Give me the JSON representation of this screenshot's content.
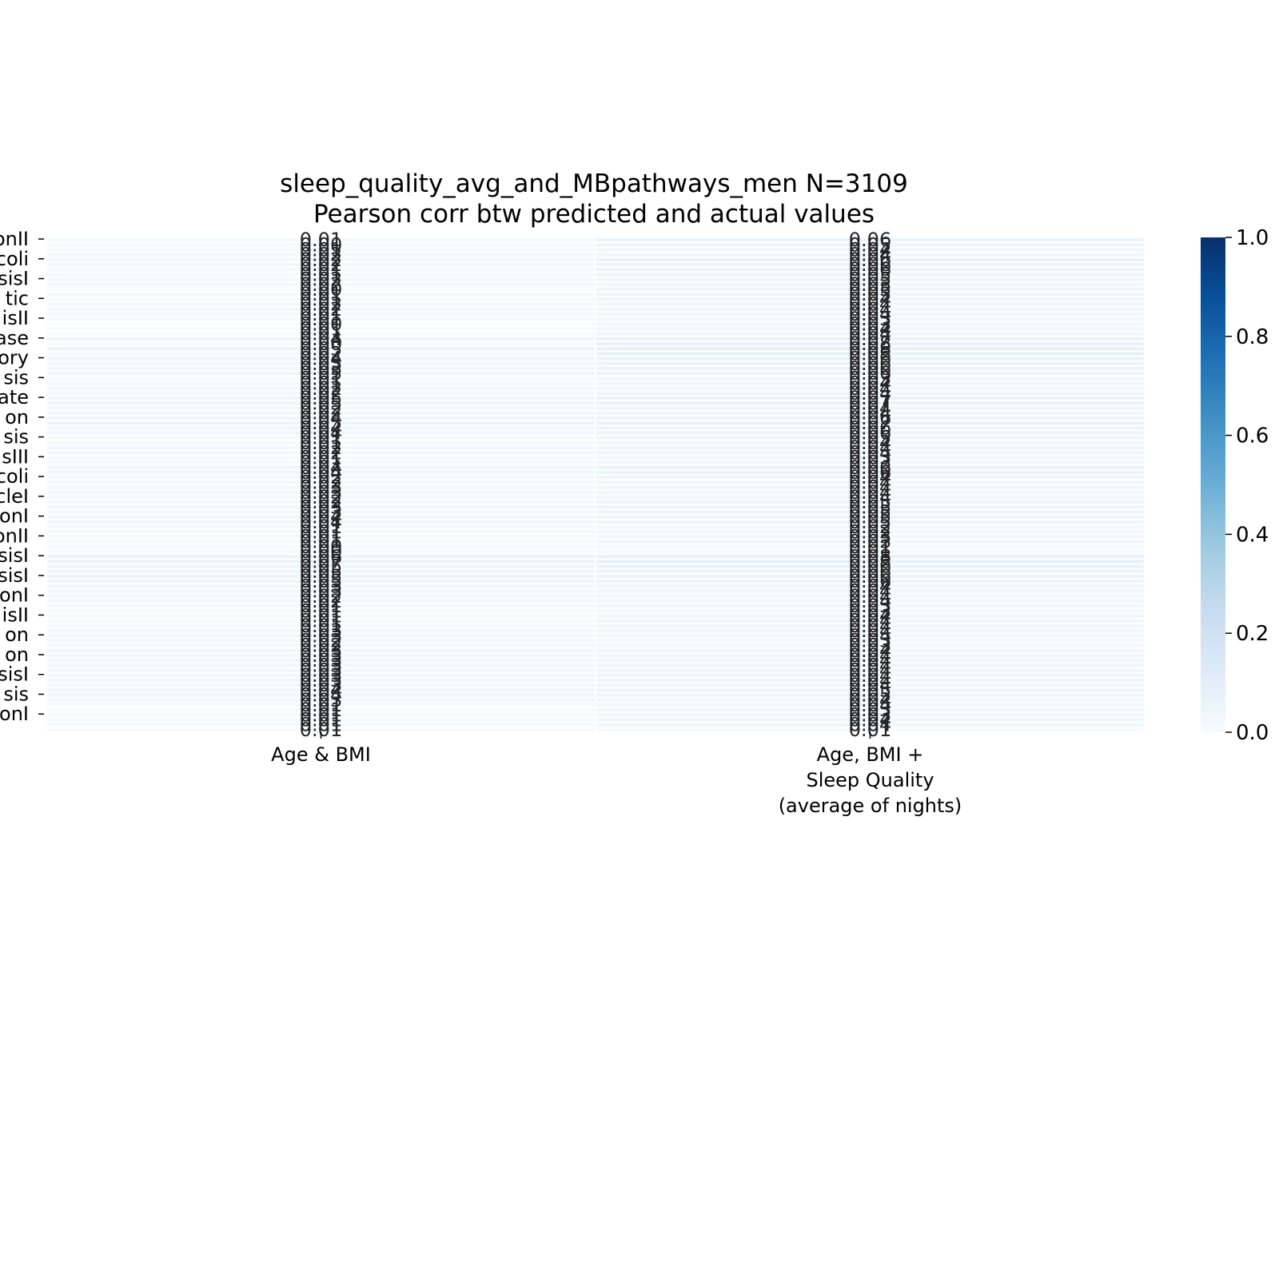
{
  "chart_data": {
    "type": "heatmap",
    "title": "sleep_quality_avg_and_MBpathways_men N=3109",
    "subtitle": "Pearson corr btw predicted and actual values",
    "colormap": "Blues",
    "colors": {
      "low": "#f7fbff",
      "high": "#08306b",
      "annotation": "#262626"
    },
    "columns": [
      "Age & BMI",
      "Age, BMI +\nSleep Quality\n(average of nights)"
    ],
    "row_tick_labels": [
      "onII",
      "coli",
      "sisI",
      "tic",
      "isII",
      "ase",
      "ory",
      "sis",
      "ate",
      "on",
      "sis",
      "sIII",
      "coli",
      "cleI",
      "onI",
      "onII",
      "sisI",
      "sisI",
      "onI",
      "isII",
      "on",
      "on",
      "sisI",
      "sis",
      "onI"
    ],
    "values": [
      [
        0.01,
        0.06
      ],
      [
        0.0,
        0.05
      ],
      [
        0.01,
        0.04
      ],
      [
        0.02,
        0.04
      ],
      [
        0.02,
        0.06
      ],
      [
        0.02,
        0.06
      ],
      [
        0.01,
        0.06
      ],
      [
        0.01,
        0.05
      ],
      [
        0.02,
        0.05
      ],
      [
        0.02,
        0.03
      ],
      [
        0.0,
        0.05
      ],
      [
        0.01,
        0.05
      ],
      [
        0.01,
        0.04
      ],
      [
        0.02,
        0.04
      ],
      [
        0.02,
        0.04
      ],
      [
        0.01,
        0.04
      ],
      [
        0.01,
        0.03
      ],
      [
        0.0,
        0.03
      ],
      [
        0.01,
        0.04
      ],
      [
        0.01,
        0.04
      ],
      [
        0.04,
        0.07
      ],
      [
        0.0,
        0.08
      ],
      [
        0.05,
        0.08
      ],
      [
        0.02,
        0.08
      ],
      [
        0.04,
        0.06
      ],
      [
        0.03,
        0.06
      ],
      [
        0.03,
        0.06
      ],
      [
        0.05,
        0.06
      ],
      [
        0.01,
        0.03
      ],
      [
        0.01,
        0.04
      ],
      [
        0.02,
        0.04
      ],
      [
        0.02,
        0.04
      ],
      [
        0.05,
        0.07
      ],
      [
        0.05,
        0.07
      ],
      [
        0.02,
        0.04
      ],
      [
        0.02,
        0.04
      ],
      [
        0.04,
        0.06
      ],
      [
        0.05,
        0.07
      ],
      [
        0.04,
        0.06
      ],
      [
        0.04,
        0.06
      ],
      [
        0.01,
        0.05
      ],
      [
        0.01,
        0.04
      ],
      [
        0.02,
        0.04
      ],
      [
        0.02,
        0.04
      ],
      [
        0.01,
        0.03
      ],
      [
        0.01,
        0.03
      ],
      [
        0.04,
        0.06
      ],
      [
        0.04,
        0.06
      ],
      [
        0.02,
        0.04
      ],
      [
        0.02,
        0.04
      ],
      [
        0.03,
        0.04
      ],
      [
        0.03,
        0.04
      ],
      [
        0.02,
        0.04
      ],
      [
        0.02,
        0.05
      ],
      [
        0.03,
        0.05
      ],
      [
        0.03,
        0.05
      ],
      [
        0.04,
        0.05
      ],
      [
        0.04,
        0.05
      ],
      [
        0.01,
        0.02
      ],
      [
        0.01,
        0.02
      ],
      [
        0.01,
        0.03
      ],
      [
        0.01,
        0.03
      ],
      [
        0.0,
        0.01
      ],
      [
        0.0,
        0.01
      ],
      [
        0.06,
        0.08
      ],
      [
        0.07,
        0.08
      ],
      [
        0.05,
        0.06
      ],
      [
        0.05,
        0.06
      ],
      [
        0.05,
        0.06
      ],
      [
        0.05,
        0.06
      ],
      [
        0.03,
        0.04
      ],
      [
        0.03,
        0.04
      ],
      [
        0.02,
        0.04
      ],
      [
        0.02,
        0.04
      ],
      [
        0.01,
        0.03
      ],
      [
        0.01,
        0.03
      ],
      [
        0.01,
        0.04
      ],
      [
        0.01,
        0.04
      ],
      [
        0.01,
        0.04
      ],
      [
        0.03,
        0.04
      ],
      [
        0.03,
        0.04
      ],
      [
        0.02,
        0.03
      ],
      [
        0.02,
        0.03
      ],
      [
        0.03,
        0.04
      ],
      [
        0.03,
        0.04
      ],
      [
        0.03,
        0.04
      ],
      [
        0.03,
        0.04
      ],
      [
        0.03,
        0.04
      ],
      [
        0.03,
        0.04
      ],
      [
        0.03,
        0.04
      ],
      [
        0.03,
        0.04
      ],
      [
        0.04,
        0.05
      ],
      [
        0.04,
        0.05
      ],
      [
        0.03,
        0.04
      ],
      [
        0.01,
        0.04
      ],
      [
        0.01,
        0.03
      ],
      [
        0.01,
        0.03
      ],
      [
        0.01,
        0.04
      ],
      [
        0.01,
        0.04
      ],
      [
        0.01,
        0.01
      ]
    ],
    "value_format": "0.00",
    "vmin": 0.0,
    "vmax": 1.0,
    "colorbar_ticks": [
      "0.0",
      "0.2",
      "0.4",
      "0.6",
      "0.8",
      "1.0"
    ],
    "grid": false,
    "legend": "colorbar-right"
  }
}
